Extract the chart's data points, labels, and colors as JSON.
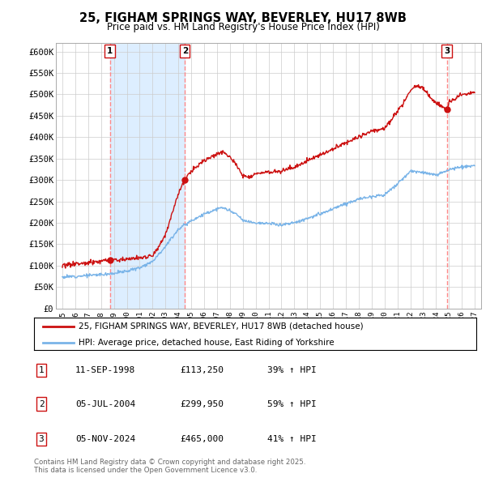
{
  "title": "25, FIGHAM SPRINGS WAY, BEVERLEY, HU17 8WB",
  "subtitle": "Price paid vs. HM Land Registry's House Price Index (HPI)",
  "hpi_color": "#7ab4e8",
  "price_color": "#cc1111",
  "marker_color": "#cc1111",
  "vline_color": "#ff8888",
  "shade_color": "#ddeeff",
  "background_color": "#ffffff",
  "grid_color": "#cccccc",
  "sale_dates": [
    1998.69,
    2004.51,
    2024.84
  ],
  "sale_prices": [
    113250,
    299950,
    465000
  ],
  "sale_labels": [
    "1",
    "2",
    "3"
  ],
  "legend_house": "25, FIGHAM SPRINGS WAY, BEVERLEY, HU17 8WB (detached house)",
  "legend_hpi": "HPI: Average price, detached house, East Riding of Yorkshire",
  "table_rows": [
    [
      "1",
      "11-SEP-1998",
      "£113,250",
      "39% ↑ HPI"
    ],
    [
      "2",
      "05-JUL-2004",
      "£299,950",
      "59% ↑ HPI"
    ],
    [
      "3",
      "05-NOV-2024",
      "£465,000",
      "41% ↑ HPI"
    ]
  ],
  "footer": "Contains HM Land Registry data © Crown copyright and database right 2025.\nThis data is licensed under the Open Government Licence v3.0.",
  "ylim": [
    0,
    620000
  ],
  "xlim": [
    1994.5,
    2027.5
  ],
  "yticks": [
    0,
    50000,
    100000,
    150000,
    200000,
    250000,
    300000,
    350000,
    400000,
    450000,
    500000,
    550000,
    600000
  ],
  "ytick_labels": [
    "£0",
    "£50K",
    "£100K",
    "£150K",
    "£200K",
    "£250K",
    "£300K",
    "£350K",
    "£400K",
    "£450K",
    "£500K",
    "£550K",
    "£600K"
  ],
  "xticks": [
    1995,
    1996,
    1997,
    1998,
    1999,
    2000,
    2001,
    2002,
    2003,
    2004,
    2005,
    2006,
    2007,
    2008,
    2009,
    2010,
    2011,
    2012,
    2013,
    2014,
    2015,
    2016,
    2017,
    2018,
    2019,
    2020,
    2021,
    2022,
    2023,
    2024,
    2025,
    2026,
    2027
  ]
}
